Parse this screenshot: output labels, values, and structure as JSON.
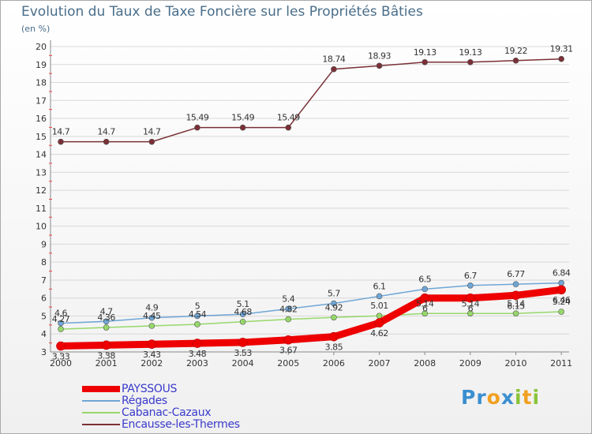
{
  "header": {
    "title": "Evolution du Taux de Taxe Foncière sur les Propriétés Bâties",
    "unit": "(en %)"
  },
  "logo": {
    "text": "Proxiti"
  },
  "colors": {
    "PAYSSOUS": "#ee0000",
    "Régades": "#6fa6d6",
    "Cabanac-Cazaux": "#96d86a",
    "Encausse-les-Thermes": "#7a3036",
    "grid": "#d8d8d8",
    "axis_tick": "#ee4444"
  },
  "chart_data": {
    "type": "line",
    "title": "Evolution du Taux de Taxe Foncière sur les Propriétés Bâties",
    "ylabel": "(en %)",
    "xlabel": "",
    "x": [
      "2000",
      "2001",
      "2002",
      "2003",
      "2004",
      "2005",
      "2006",
      "2007",
      "2008",
      "2009",
      "2010",
      "2011"
    ],
    "ylim": [
      3,
      20
    ],
    "yticks": [
      3,
      4,
      5,
      6,
      7,
      8,
      9,
      10,
      11,
      12,
      13,
      14,
      15,
      16,
      17,
      18,
      19,
      20
    ],
    "grid": true,
    "legend_position": "bottom-left",
    "series": [
      {
        "name": "PAYSSOUS",
        "values": [
          3.33,
          3.38,
          3.43,
          3.48,
          3.53,
          3.67,
          3.85,
          4.62,
          6.0,
          6.0,
          6.15,
          6.46
        ]
      },
      {
        "name": "Régades",
        "values": [
          4.6,
          4.7,
          4.9,
          5,
          5.1,
          5.4,
          5.7,
          6.1,
          6.5,
          6.7,
          6.77,
          6.84
        ]
      },
      {
        "name": "Cabanac-Cazaux",
        "values": [
          4.27,
          4.36,
          4.45,
          4.54,
          4.68,
          4.82,
          4.92,
          5.01,
          5.14,
          5.14,
          5.14,
          5.24
        ]
      },
      {
        "name": "Encausse-les-Thermes",
        "values": [
          14.7,
          14.7,
          14.7,
          15.49,
          15.49,
          15.49,
          18.74,
          18.93,
          19.13,
          19.13,
          19.22,
          19.31
        ]
      }
    ],
    "data_labels": {
      "PAYSSOUS": [
        "3.33",
        "3.38",
        "3.43",
        "3.48",
        "3.53",
        "3.67",
        "3.85",
        "4.62",
        "6",
        "6",
        "6.15",
        "6.46"
      ],
      "Régades": [
        "4.6",
        "4.7",
        "4.9",
        "5",
        "5.1",
        "5.4",
        "5.7",
        "6.1",
        "6.5",
        "6.7",
        "6.77",
        "6.84"
      ],
      "Cabanac-Cazaux": [
        "4.27",
        "4.36",
        "4.45",
        "4.54",
        "4.68",
        "4.82",
        "4.92",
        "5.01",
        "5.14",
        "5.14",
        "5.14",
        "5.24"
      ],
      "Encausse-les-Thermes": [
        "14.7",
        "14.7",
        "14.7",
        "15.49",
        "15.49",
        "15.49",
        "18.74",
        "18.93",
        "19.13",
        "19.13",
        "19.22",
        "19.31"
      ]
    }
  },
  "legend": [
    {
      "label": "PAYSSOUS"
    },
    {
      "label": "Régades"
    },
    {
      "label": "Cabanac-Cazaux"
    },
    {
      "label": "Encausse-les-Thermes"
    }
  ]
}
